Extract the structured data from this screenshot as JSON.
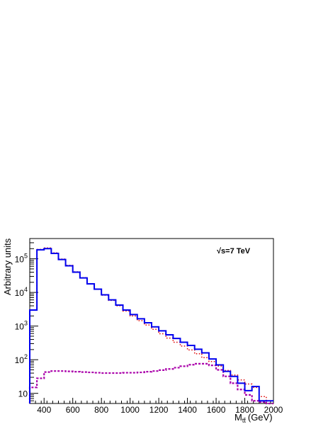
{
  "chart_data": {
    "type": "line",
    "xlabel": "M",
    "xlabel_subscript": "tt̄",
    "xlabel_unit": "(GeV)",
    "ylabel": "Arbitrary units",
    "annotation": "√s=7 TeV",
    "xlim": [
      300,
      2000
    ],
    "ylim": [
      5,
      400000
    ],
    "yscale": "log",
    "legend": "none",
    "grid": false,
    "x_ticks": [
      400,
      600,
      800,
      1000,
      1200,
      1400,
      1600,
      1800,
      2000
    ],
    "y_ticks": [
      {
        "value": 10,
        "label": "10",
        "exp": ""
      },
      {
        "value": 100,
        "label": "10",
        "exp": "2"
      },
      {
        "value": 1000,
        "label": "10",
        "exp": "3"
      },
      {
        "value": 10000,
        "label": "10",
        "exp": "4"
      },
      {
        "value": 100000,
        "label": "10",
        "exp": "5"
      }
    ],
    "bin_edges": [
      300,
      350,
      400,
      450,
      500,
      550,
      600,
      650,
      700,
      750,
      800,
      850,
      900,
      950,
      1000,
      1050,
      1100,
      1150,
      1200,
      1250,
      1300,
      1350,
      1400,
      1450,
      1500,
      1550,
      1600,
      1650,
      1700,
      1750,
      1800,
      1850,
      1900,
      1950,
      2000
    ],
    "series": [
      {
        "style": "solid",
        "color": "#0000ee",
        "values": [
          3000,
          185000,
          200000,
          145000,
          95000,
          62000,
          40000,
          27000,
          18000,
          12500,
          8500,
          6000,
          4200,
          3000,
          2200,
          1650,
          1250,
          950,
          720,
          550,
          430,
          330,
          265,
          205,
          160,
          105,
          70,
          45,
          32,
          20,
          12,
          16,
          6,
          6
        ]
      },
      {
        "style": "dotted",
        "color": "#dd0000",
        "values": [
          3000,
          190000,
          210000,
          150000,
          98000,
          64000,
          41000,
          27500,
          18000,
          12500,
          8300,
          5800,
          4000,
          2800,
          2000,
          1450,
          1080,
          800,
          590,
          440,
          330,
          255,
          195,
          150,
          115,
          88,
          65,
          48,
          35,
          25,
          19,
          15,
          8,
          6
        ]
      },
      {
        "style": "dashed",
        "color": "#aa00aa",
        "values": [
          15,
          28,
          43,
          46,
          46,
          45,
          44,
          43,
          42,
          41,
          40,
          40,
          40,
          41,
          41,
          42,
          44,
          46,
          49,
          53,
          58,
          64,
          71,
          76,
          76,
          68,
          50,
          32,
          20,
          13,
          9,
          6,
          5.5,
          5
        ]
      }
    ]
  }
}
